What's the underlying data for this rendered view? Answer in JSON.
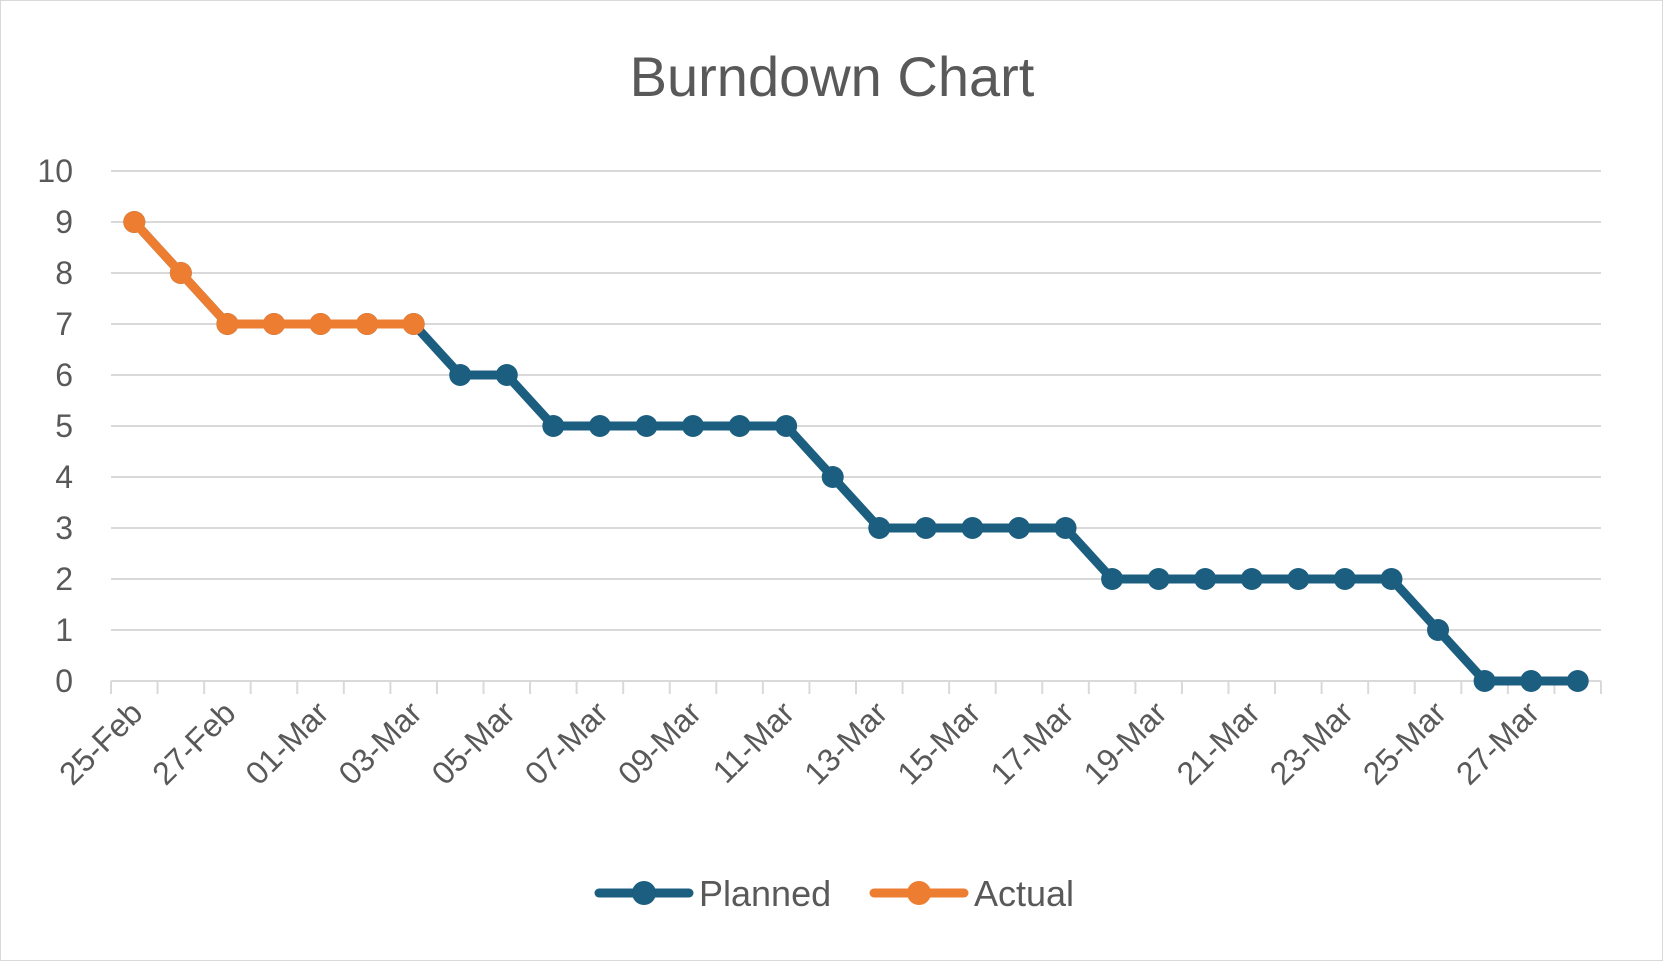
{
  "chart_data": {
    "type": "line",
    "title": "Burndown Chart",
    "xlabel": "",
    "ylabel": "",
    "ylim": [
      0,
      10
    ],
    "yticks": [
      0,
      1,
      2,
      3,
      4,
      5,
      6,
      7,
      8,
      9,
      10
    ],
    "x": [
      "25-Feb",
      "26-Feb",
      "27-Feb",
      "28-Feb",
      "01-Mar",
      "02-Mar",
      "03-Mar",
      "04-Mar",
      "05-Mar",
      "06-Mar",
      "07-Mar",
      "08-Mar",
      "09-Mar",
      "10-Mar",
      "11-Mar",
      "12-Mar",
      "13-Mar",
      "14-Mar",
      "15-Mar",
      "16-Mar",
      "17-Mar",
      "18-Mar",
      "19-Mar",
      "20-Mar",
      "21-Mar",
      "22-Mar",
      "23-Mar",
      "24-Mar",
      "25-Mar",
      "26-Mar",
      "27-Mar",
      "28-Mar"
    ],
    "xtick_labels": [
      "25-Feb",
      "27-Feb",
      "01-Mar",
      "03-Mar",
      "05-Mar",
      "07-Mar",
      "09-Mar",
      "11-Mar",
      "13-Mar",
      "15-Mar",
      "17-Mar",
      "19-Mar",
      "21-Mar",
      "23-Mar",
      "25-Mar",
      "27-Mar"
    ],
    "grid": true,
    "legend_position": "bottom",
    "series": [
      {
        "name": "Planned",
        "color": "#1b5e7f",
        "values": [
          9,
          8,
          7,
          7,
          7,
          7,
          7,
          6,
          6,
          5,
          5,
          5,
          5,
          5,
          5,
          4,
          3,
          3,
          3,
          3,
          3,
          2,
          2,
          2,
          2,
          2,
          2,
          2,
          1,
          0,
          0,
          0
        ]
      },
      {
        "name": "Actual",
        "color": "#ed7d31",
        "values": [
          9,
          8,
          7,
          7,
          7,
          7,
          7,
          null,
          null,
          null,
          null,
          null,
          null,
          null,
          null,
          null,
          null,
          null,
          null,
          null,
          null,
          null,
          null,
          null,
          null,
          null,
          null,
          null,
          null,
          null,
          null,
          null
        ]
      }
    ]
  }
}
